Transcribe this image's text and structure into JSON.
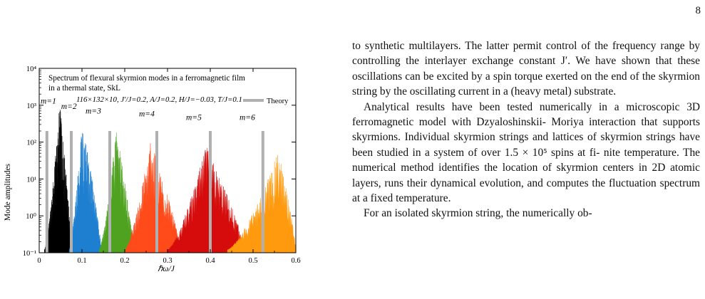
{
  "page": {
    "number": "8"
  },
  "figure": {
    "title_line1": "Spectrum of flexural skyrmion modes in a ferromagnetic film",
    "title_line2": "in a thermal state, SkL",
    "params": "116×132×10, J′/J=0.2, A/J=0.2, H/J=−0.03, T/J=0.1",
    "legend_label": "Theory",
    "ylabel": "Mode amplitudes",
    "xlabel": "ℏω/J",
    "mode_labels": [
      "m=1",
      "m=2",
      "m=3",
      "m=4",
      "m=5",
      "m=6"
    ],
    "colors": {
      "m1": "#000000",
      "m2": "#1e7fd0",
      "m3": "#4ea21f",
      "m4": "#ff4a1a",
      "m5": "#d60b0b",
      "m6": "#ff9a0f",
      "theory": "#b0b0b0"
    }
  },
  "chart_data": {
    "type": "area",
    "yscale": "log",
    "xlim": [
      0,
      0.6
    ],
    "ylim": [
      0.1,
      10000
    ],
    "x_ticks": [
      "0",
      "0.1",
      "0.2",
      "0.3",
      "0.4",
      "0.5",
      "0.6"
    ],
    "y_ticks": [
      "10⁻¹",
      "10⁰",
      "10¹",
      "10²",
      "10³",
      "10⁴"
    ],
    "series": [
      {
        "name": "m=1",
        "x_range": [
          0.012,
          0.075
        ],
        "peak_x": 0.048,
        "peak_y": 1200
      },
      {
        "name": "m=2",
        "x_range": [
          0.07,
          0.145
        ],
        "peak_x": 0.1,
        "peak_y": 400
      },
      {
        "name": "m=3",
        "x_range": [
          0.14,
          0.22
        ],
        "peak_x": 0.18,
        "peak_y": 220
      },
      {
        "name": "m=4",
        "x_range": [
          0.2,
          0.33
        ],
        "peak_x": 0.26,
        "peak_y": 110
      },
      {
        "name": "m=5",
        "x_range": [
          0.3,
          0.48
        ],
        "peak_x": 0.39,
        "peak_y": 80
      },
      {
        "name": "m=6",
        "x_range": [
          0.44,
          0.6
        ],
        "peak_x": 0.56,
        "peak_y": 60
      }
    ],
    "theory": {
      "name": "Theory",
      "x": [
        0.018,
        0.075,
        0.165,
        0.275,
        0.4,
        0.523
      ],
      "y": [
        200,
        200,
        200,
        200,
        200,
        200
      ]
    }
  },
  "text": {
    "p1": [
      "to synthetic multilayers. The latter permit control of the",
      "frequency range by controlling the interlayer exchange",
      "constant J′. We have shown that these oscillations can",
      "be excited by a spin torque exerted on the end of the",
      "skyrmion string by the oscillating current in a (heavy",
      "metal) substrate."
    ],
    "p2": [
      "Analytical results have been tested numerically in a",
      "microscopic 3D ferromagnetic model with Dzyaloshinskii-",
      "Moriya interaction that supports skyrmions. Individual",
      "skyrmion strings and lattices of skyrmion strings have",
      "been studied in a system of over 1.5 × 10⁵ spins at fi-",
      "nite temperature. The numerical method identifies the",
      "location of skyrmion centers in 2D atomic layers, runs",
      "their dynamical evolution, and computes the fluctuation",
      "spectrum at a fixed temperature."
    ],
    "p3": [
      "For an isolated skyrmion string, the numerically ob-"
    ]
  }
}
